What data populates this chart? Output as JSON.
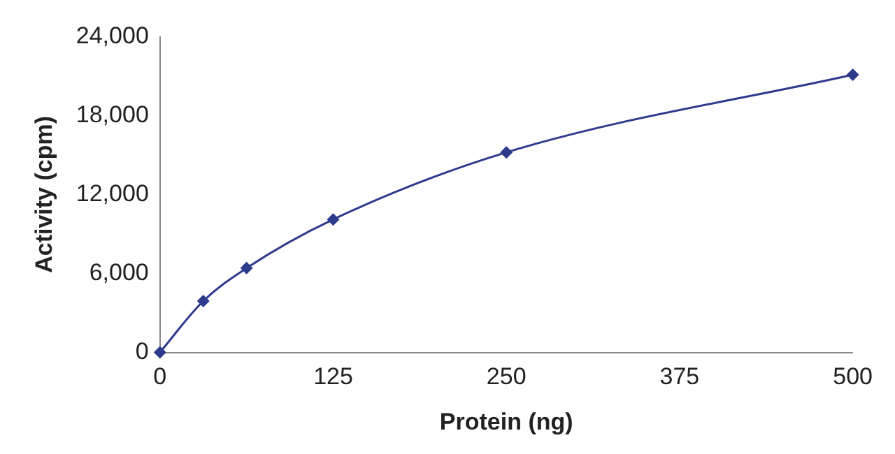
{
  "chart_data": {
    "type": "line",
    "xlabel": "Protein (ng)",
    "ylabel": "Activity (cpm)",
    "x": [
      0,
      31.25,
      62.5,
      125,
      250,
      500
    ],
    "series": [
      {
        "color": "#2e3a8c",
        "values": [
          0,
          3900,
          6400,
          10100,
          15200,
          21100
        ]
      }
    ],
    "xlim": [
      0,
      500
    ],
    "xticks": [
      0,
      125,
      250,
      375,
      500
    ],
    "ylim": [
      0,
      24000
    ],
    "yticks": [
      0,
      {
        "value": 6000,
        "label": "6,000"
      },
      {
        "value": 12000,
        "label": "12,000"
      },
      {
        "value": 18000,
        "label": "18,000"
      },
      {
        "value": 24000,
        "label": "24,000"
      }
    ],
    "grid": false,
    "legend": false,
    "marker": "diamond",
    "line_style": "solid"
  }
}
